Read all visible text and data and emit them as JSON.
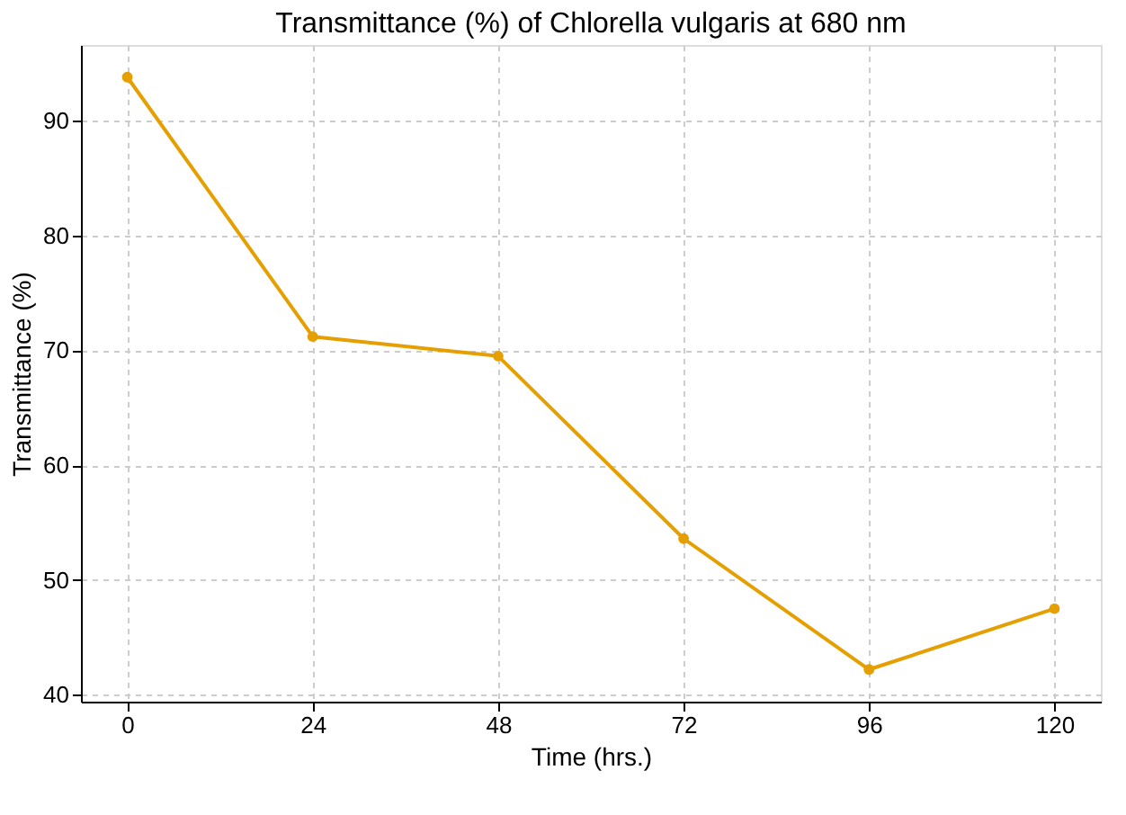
{
  "chart_data": {
    "type": "line",
    "title": "Transmittance (%) of Chlorella vulgaris at 680 nm",
    "xlabel": "Time (hrs.)",
    "ylabel": "Transmittance (%)",
    "x": [
      0,
      24,
      48,
      72,
      96,
      120
    ],
    "series": [
      {
        "color": "#e69f00",
        "values": [
          93.8,
          71.2,
          69.5,
          53.6,
          42.2,
          47.5
        ]
      }
    ],
    "xlim": [
      -6,
      126
    ],
    "xticks": [
      0,
      24,
      48,
      72,
      96,
      120
    ],
    "ylim": [
      39.4,
      96.6
    ],
    "yticks": [
      40,
      50,
      60,
      70,
      80,
      90
    ],
    "grid": true,
    "marker": "circle",
    "line_style": "solid"
  }
}
